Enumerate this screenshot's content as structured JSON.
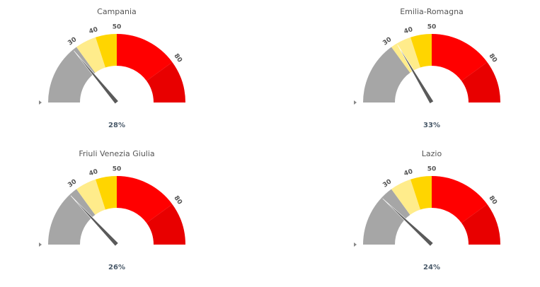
{
  "chart_data": [
    {
      "type": "gauge",
      "title": "Campania",
      "value": 28,
      "value_label": "28%",
      "ylim": [
        0,
        100
      ],
      "yticks": [
        30,
        40,
        50,
        80
      ],
      "bands": [
        {
          "from": 0,
          "to": 30,
          "color": "#a6a6a6"
        },
        {
          "from": 30,
          "to": 40,
          "color": "#ffec8b"
        },
        {
          "from": 40,
          "to": 50,
          "color": "#ffd500"
        },
        {
          "from": 50,
          "to": 80,
          "color": "#ff0000"
        },
        {
          "from": 80,
          "to": 100,
          "color": "#e80000"
        }
      ]
    },
    {
      "type": "gauge",
      "title": "Emilia-Romagna",
      "value": 33,
      "value_label": "33%",
      "ylim": [
        0,
        100
      ],
      "yticks": [
        30,
        40,
        50,
        80
      ],
      "bands": [
        {
          "from": 0,
          "to": 30,
          "color": "#a6a6a6"
        },
        {
          "from": 30,
          "to": 40,
          "color": "#ffec8b"
        },
        {
          "from": 40,
          "to": 50,
          "color": "#ffd500"
        },
        {
          "from": 50,
          "to": 80,
          "color": "#ff0000"
        },
        {
          "from": 80,
          "to": 100,
          "color": "#e80000"
        }
      ]
    },
    {
      "type": "gauge",
      "title": "Friuli Venezia Giulia",
      "value": 26,
      "value_label": "26%",
      "ylim": [
        0,
        100
      ],
      "yticks": [
        30,
        40,
        50,
        80
      ],
      "bands": [
        {
          "from": 0,
          "to": 30,
          "color": "#a6a6a6"
        },
        {
          "from": 30,
          "to": 40,
          "color": "#ffec8b"
        },
        {
          "from": 40,
          "to": 50,
          "color": "#ffd500"
        },
        {
          "from": 50,
          "to": 80,
          "color": "#ff0000"
        },
        {
          "from": 80,
          "to": 100,
          "color": "#e80000"
        }
      ]
    },
    {
      "type": "gauge",
      "title": "Lazio",
      "value": 24,
      "value_label": "24%",
      "ylim": [
        0,
        100
      ],
      "yticks": [
        30,
        40,
        50,
        80
      ],
      "bands": [
        {
          "from": 0,
          "to": 30,
          "color": "#a6a6a6"
        },
        {
          "from": 30,
          "to": 40,
          "color": "#ffec8b"
        },
        {
          "from": 40,
          "to": 50,
          "color": "#ffd500"
        },
        {
          "from": 50,
          "to": 80,
          "color": "#ff0000"
        },
        {
          "from": 80,
          "to": 100,
          "color": "#e80000"
        }
      ]
    }
  ]
}
